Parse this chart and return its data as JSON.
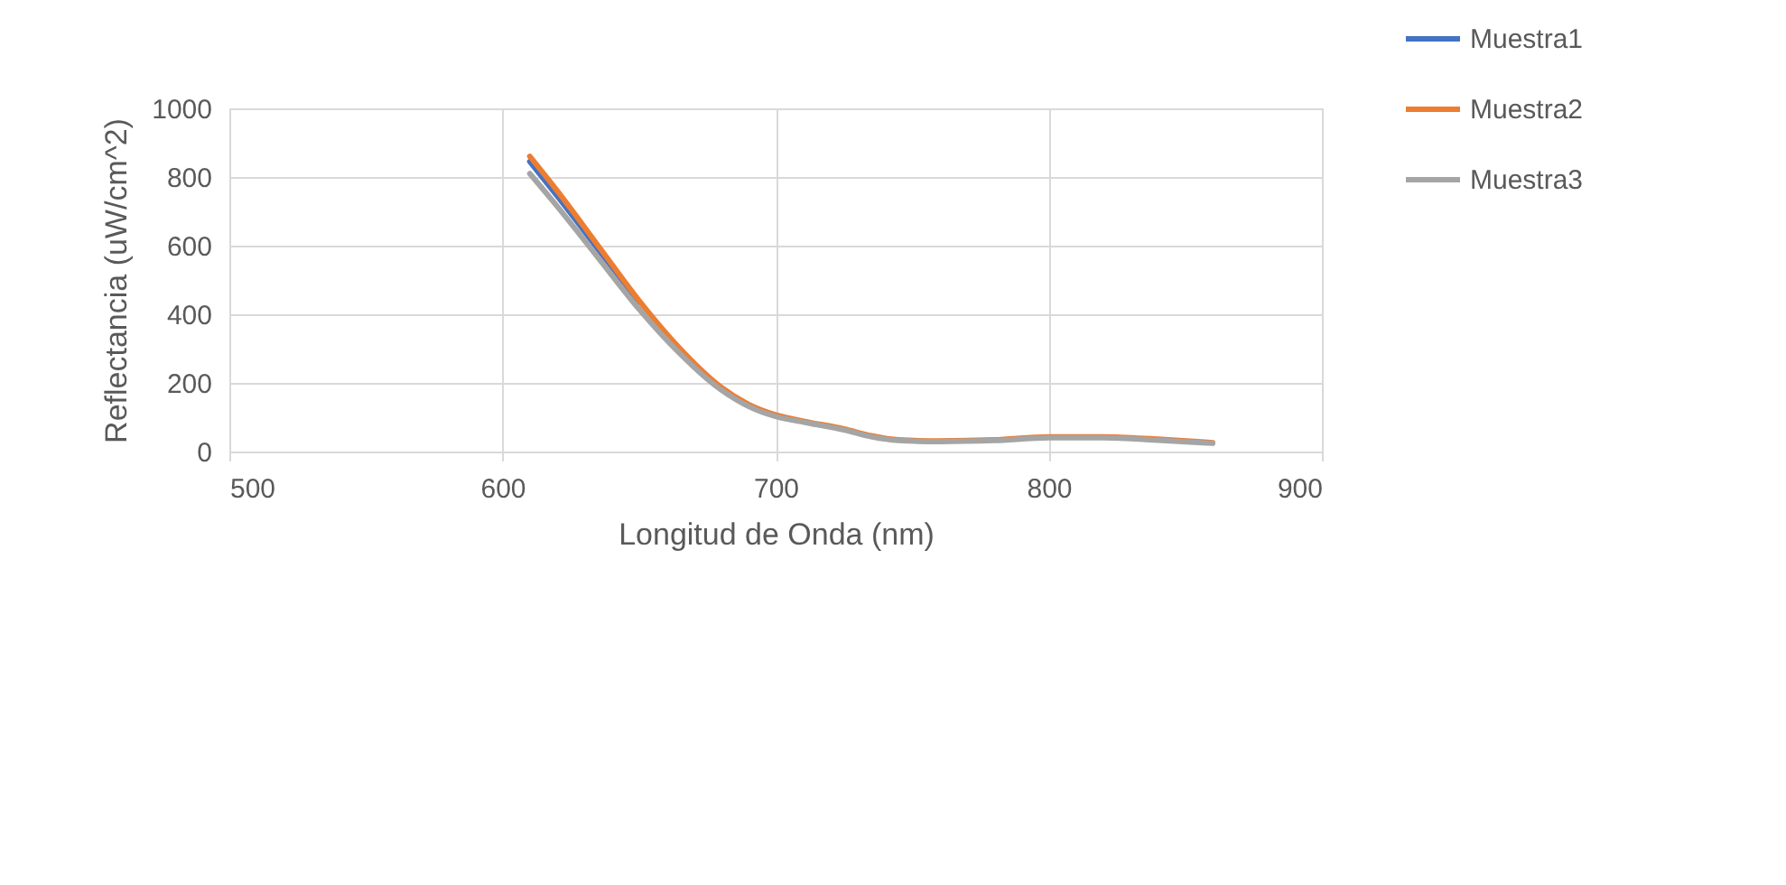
{
  "chart_data": {
    "type": "line",
    "xlabel": "Longitud de Onda (nm)",
    "ylabel": "Reflectancia (uW/cm^2)",
    "x": [
      610,
      620,
      635,
      650,
      665,
      680,
      690,
      700,
      712,
      725,
      735,
      745,
      760,
      780,
      800,
      820,
      840,
      860
    ],
    "series": [
      {
        "name": "Muestra1",
        "color": "#4472c4",
        "values": [
          845,
          745,
          590,
          435,
          null,
          null,
          null,
          null,
          null,
          null,
          null,
          null,
          null,
          null,
          null,
          null,
          null,
          null
        ]
      },
      {
        "name": "Muestra2",
        "color": "#ed7d31",
        "values": [
          860,
          760,
          600,
          440,
          300,
          188,
          138,
          107,
          86,
          66,
          46,
          34,
          31,
          34,
          43,
          43,
          36,
          26
        ]
      },
      {
        "name": "Muestra3",
        "color": "#a5a5a5",
        "values": [
          810,
          715,
          565,
          415,
          285,
          180,
          132,
          102,
          83,
          63,
          43,
          32,
          29,
          32,
          40,
          40,
          33,
          24
        ]
      }
    ],
    "xlim": [
      500,
      900
    ],
    "xticks": [
      500,
      600,
      700,
      800,
      900
    ],
    "ylim": [
      0,
      1000
    ],
    "yticks": [
      0,
      200,
      400,
      600,
      800,
      {
        "value": 1000,
        "label": "1000"
      }
    ],
    "grid": true,
    "legend": "top right",
    "marker": "none",
    "line_style": "solid"
  }
}
